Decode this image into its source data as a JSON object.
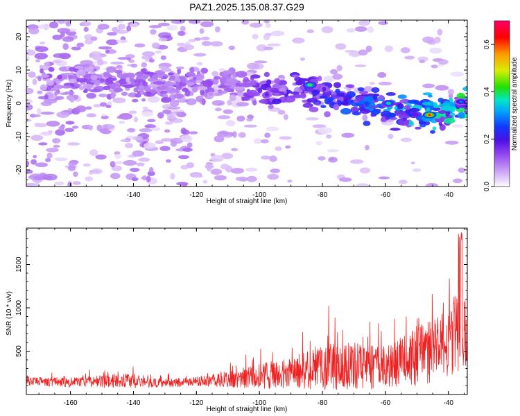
{
  "title": "PAZ1.2025.135.08.37.G29",
  "colors": {
    "snr_line": "#ee2222",
    "axis": "#000000",
    "colormap": [
      "#ffffff",
      "#e6d3fb",
      "#c79cf5",
      "#8f42ee",
      "#4b10e6",
      "#1238ff",
      "#00a0ff",
      "#00e6c8",
      "#22e000",
      "#d8ee00",
      "#ff9900",
      "#ff0000",
      "#ff0066"
    ]
  },
  "chart_data": [
    {
      "type": "heatmap",
      "xlabel": "Height of straight line (km)",
      "ylabel": "Frequency (Hz)",
      "xlim": [
        -174,
        -34
      ],
      "ylim": [
        -25,
        25
      ],
      "xticks": [
        -160,
        -140,
        -120,
        -100,
        -80,
        -60,
        -40
      ],
      "yticks": [
        -20,
        -10,
        0,
        10,
        20
      ],
      "colorbar": {
        "label": "Normalized spectral amplitude",
        "range": [
          0,
          0.7
        ],
        "ticks": [
          "0.0",
          "0.2",
          "0.4",
          "0.6"
        ],
        "tick_values": [
          0,
          0.2,
          0.4,
          0.6
        ]
      },
      "ridge": {
        "description_points_x": [
          -165,
          -150,
          -130,
          -110,
          -100,
          -90,
          -80,
          -70,
          -60,
          -50,
          -40,
          -35
        ],
        "description_points_y": [
          7,
          6,
          6,
          5,
          4,
          4,
          3,
          1,
          -2,
          -3,
          -2,
          0
        ],
        "peak_amplitude_points": [
          {
            "x": -84,
            "y": 5.5,
            "amp": 0.45
          },
          {
            "x": -59,
            "y": 0,
            "amp": 0.4
          },
          {
            "x": -46,
            "y": -3.5,
            "amp": 0.65
          },
          {
            "x": -36,
            "y": 0.5,
            "amp": 0.3
          }
        ]
      }
    },
    {
      "type": "line",
      "series": [
        {
          "color": "#ee2222"
        }
      ],
      "xlabel": "Height of straight line (km)",
      "ylabel": "SNR (10 * v/v)",
      "xlim": [
        -174,
        -34
      ],
      "ylim": [
        0,
        1920
      ],
      "xticks": [
        -160,
        -140,
        -120,
        -100,
        -80,
        -60,
        -40
      ],
      "yticks": [
        500,
        1000,
        1500
      ],
      "envelope": {
        "x": [
          -174,
          -160,
          -140,
          -130,
          -120,
          -110,
          -100,
          -90,
          -80,
          -70,
          -60,
          -55,
          -50,
          -45,
          -40,
          -37,
          -35,
          -34
        ],
        "mean": [
          150,
          140,
          160,
          130,
          150,
          170,
          210,
          250,
          320,
          330,
          300,
          380,
          450,
          500,
          600,
          800,
          700,
          600
        ],
        "spread": [
          80,
          90,
          150,
          80,
          100,
          150,
          250,
          300,
          450,
          450,
          400,
          500,
          600,
          600,
          650,
          900,
          750,
          600
        ]
      }
    }
  ]
}
